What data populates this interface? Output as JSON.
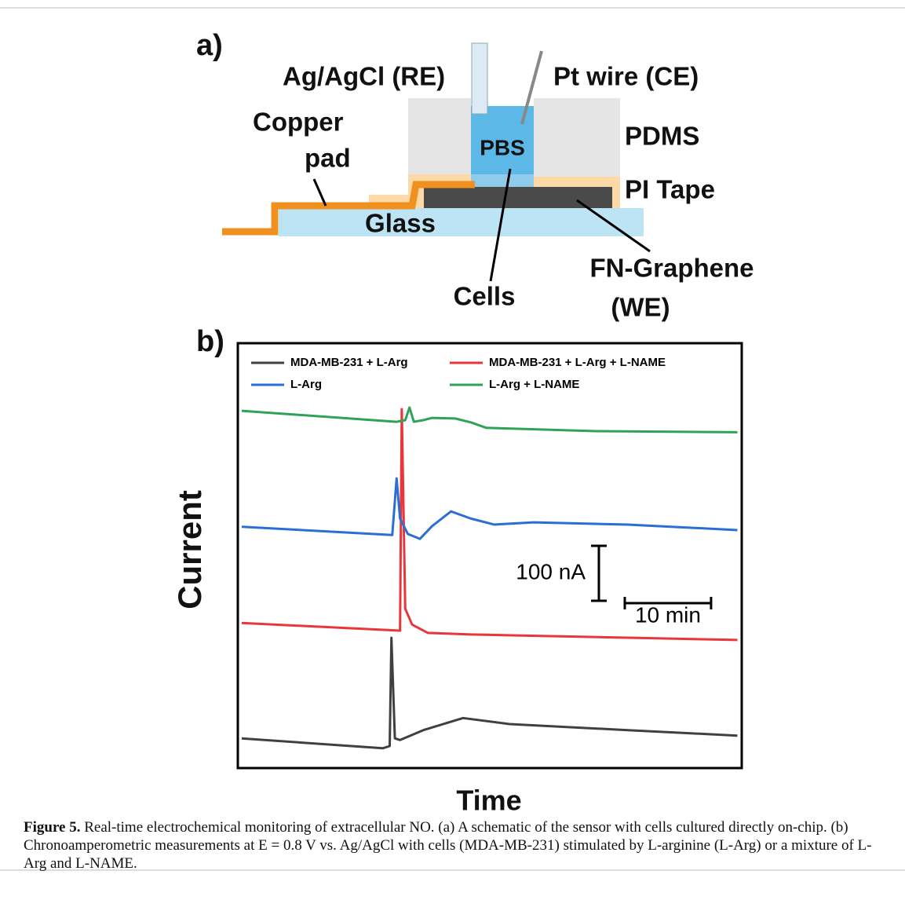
{
  "figure": {
    "panel_a": {
      "label": "a)",
      "labels": {
        "re": "Ag/AgCl (RE)",
        "ce": "Pt wire (CE)",
        "copper1": "Copper",
        "copper2": "pad",
        "pdms": "PDMS",
        "pbs": "PBS",
        "pi": "PI Tape",
        "glass": "Glass",
        "cells": "Cells",
        "we1": "FN-Graphene",
        "we2": "(WE)"
      }
    },
    "panel_b": {
      "label": "b)"
    },
    "caption": {
      "label": "Figure 5.",
      "text": "Real-time electrochemical monitoring of extracellular NO. (a) A schematic of the sensor with cells cultured directly on-chip. (b) Chronoamperometric measurements at E = 0.8 V vs. Ag/AgCl with cells (MDA-MB-231) stimulated by L-arginine (L-Arg) or a mixture of L-Arg and L-NAME."
    }
  },
  "chart_data": {
    "type": "line",
    "x_label": "Time",
    "y_label": "Current",
    "xlim": [
      0,
      58.4
    ],
    "ylim": [
      0,
      773
    ],
    "scale_bar": {
      "y_value": 100,
      "y_label": "100 nA",
      "x_value": 10,
      "x_label": "10 min"
    },
    "series": [
      {
        "name": "MDA-MB-231 + L-Arg",
        "color": "#404040",
        "x": [
          0.45,
          16.8,
          17.6,
          17.8,
          18.2,
          18.8,
          21.5,
          26.1,
          31.5,
          45.2,
          57.9
        ],
        "values": [
          54,
          36,
          40,
          237,
          54,
          51,
          69,
          91,
          80,
          69,
          59
        ]
      },
      {
        "name": "MDA-MB-231 + L-Arg + L-NAME",
        "color": "#e8363a",
        "x": [
          0.45,
          18.8,
          19.0,
          19.4,
          20.2,
          22.0,
          27.0,
          57.9
        ],
        "values": [
          264,
          250,
          653,
          290,
          261,
          246,
          243,
          233
        ]
      },
      {
        "name": "L-Arg",
        "color": "#2a6fd4",
        "x": [
          0.45,
          17.9,
          18.4,
          18.8,
          19.7,
          21.1,
          22.5,
          24.7,
          27.0,
          29.7,
          34.3,
          45.2,
          57.9
        ],
        "values": [
          439,
          424,
          527,
          454,
          426,
          417,
          440,
          467,
          454,
          443,
          447,
          443,
          433
        ]
      },
      {
        "name": "L-Arg + L-NAME",
        "color": "#2ea356",
        "x": [
          0.45,
          18.4,
          19.4,
          19.9,
          20.4,
          21.5,
          22.5,
          25.2,
          27.0,
          28.8,
          41.5,
          57.9
        ],
        "values": [
          650,
          630,
          633,
          656,
          630,
          633,
          637,
          636,
          629,
          619,
          613,
          611
        ]
      }
    ],
    "legend": "top-left"
  }
}
